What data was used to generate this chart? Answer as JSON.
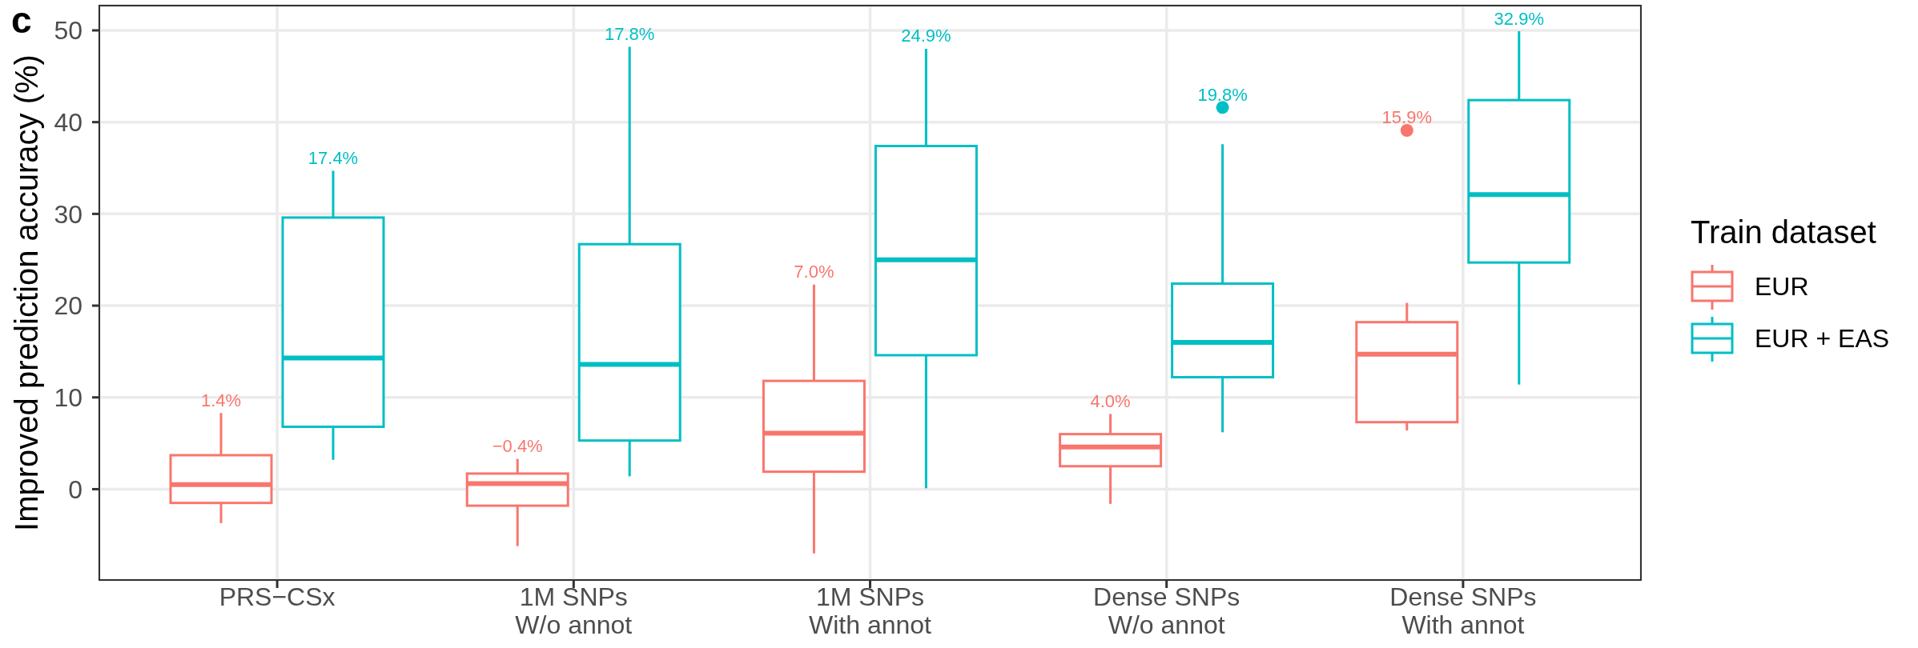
{
  "chart_data": {
    "type": "box",
    "annotations": [
      "c"
    ],
    "ylabel": "Improved prediction accuracy (%)",
    "legend_title": "Train dataset",
    "legend": "right",
    "grid": true,
    "categories": [
      "PRS−CSx",
      "1M SNPs\nW/o annot",
      "1M SNPs\nWith annot",
      "Dense SNPs\nW/o annot",
      "Dense SNPs\nWith annot"
    ],
    "ylim": [
      -9.9,
      52.7
    ],
    "yticks": [
      0,
      10,
      20,
      30,
      40,
      50
    ],
    "series": [
      {
        "name": "EUR",
        "color": "#f8766d",
        "boxes": [
          {
            "low": -3.7,
            "q1": -1.5,
            "median": 0.5,
            "q3": 3.7,
            "high": 8.3
          },
          {
            "low": -6.2,
            "q1": -1.8,
            "median": 0.6,
            "q3": 1.7,
            "high": 3.3
          },
          {
            "low": -7.0,
            "q1": 1.9,
            "median": 6.1,
            "q3": 11.8,
            "high": 22.3
          },
          {
            "low": -1.6,
            "q1": 2.5,
            "median": 4.6,
            "q3": 6.0,
            "high": 8.2
          },
          {
            "low": 6.4,
            "q1": 7.3,
            "median": 14.7,
            "q3": 18.2,
            "high": 20.3,
            "outliers": [
              39.1
            ]
          }
        ],
        "value_labels": [
          "1.4%",
          "−0.4%",
          "7.0%",
          "4.0%",
          "15.9%"
        ]
      },
      {
        "name": "EUR + EAS",
        "color": "#00bfc4",
        "boxes": [
          {
            "low": 3.2,
            "q1": 6.8,
            "median": 14.3,
            "q3": 29.6,
            "high": 34.7
          },
          {
            "low": 1.4,
            "q1": 5.3,
            "median": 13.6,
            "q3": 26.7,
            "high": 48.2
          },
          {
            "low": 0.1,
            "q1": 14.6,
            "median": 25.0,
            "q3": 37.4,
            "high": 48.0
          },
          {
            "low": 6.2,
            "q1": 12.2,
            "median": 16.0,
            "q3": 22.4,
            "high": 37.6,
            "outliers": [
              41.6
            ]
          },
          {
            "low": 11.4,
            "q1": 24.7,
            "median": 32.1,
            "q3": 42.4,
            "high": 49.9
          }
        ],
        "value_labels": [
          "17.4%",
          "17.8%",
          "24.9%",
          "19.8%",
          "32.9%"
        ]
      }
    ]
  }
}
